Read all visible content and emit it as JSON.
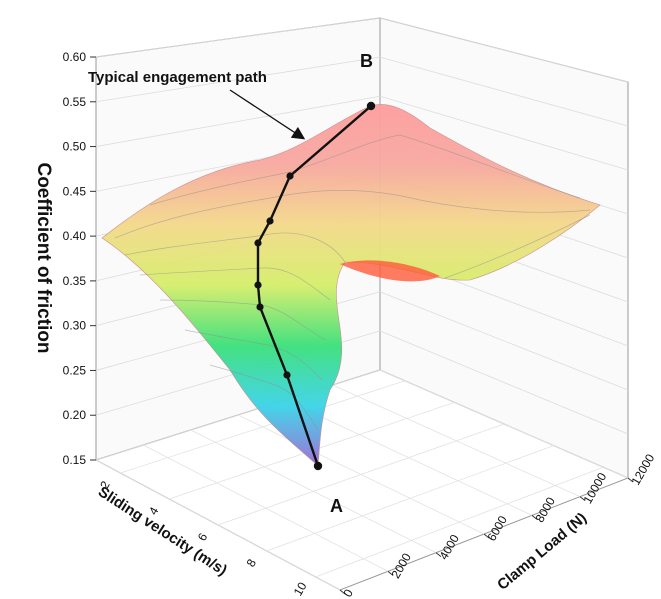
{
  "chart_data": {
    "type": "surface3d",
    "title": "",
    "zlabel": "Coefficient of friction",
    "xlabel": "Sliding velocity (m/s)",
    "ylabel": "Clamp Load (N)",
    "zlim": [
      0.15,
      0.6
    ],
    "z_ticks": [
      "0.15",
      "0.20",
      "0.25",
      "0.30",
      "0.35",
      "0.40",
      "0.45",
      "0.50",
      "0.55",
      "0.60"
    ],
    "velocity_ticks": [
      "2",
      "4",
      "6",
      "8",
      "10"
    ],
    "load_ticks": [
      "0",
      "2000",
      "4000",
      "6000",
      "8000",
      "10000",
      "12000"
    ],
    "grid": true,
    "colormap": [
      "#9b6bd6",
      "#3ad4e8",
      "#3be07a",
      "#d6ef6a",
      "#f4d98a",
      "#f7a8a0",
      "#ff9d9d"
    ],
    "annotations": {
      "path_label": "Typical engagement path",
      "start_label": "A",
      "end_label": "B"
    },
    "engagement_path_cof": [
      0.15,
      0.245,
      0.325,
      0.355,
      0.395,
      0.42,
      0.47,
      0.545
    ]
  }
}
